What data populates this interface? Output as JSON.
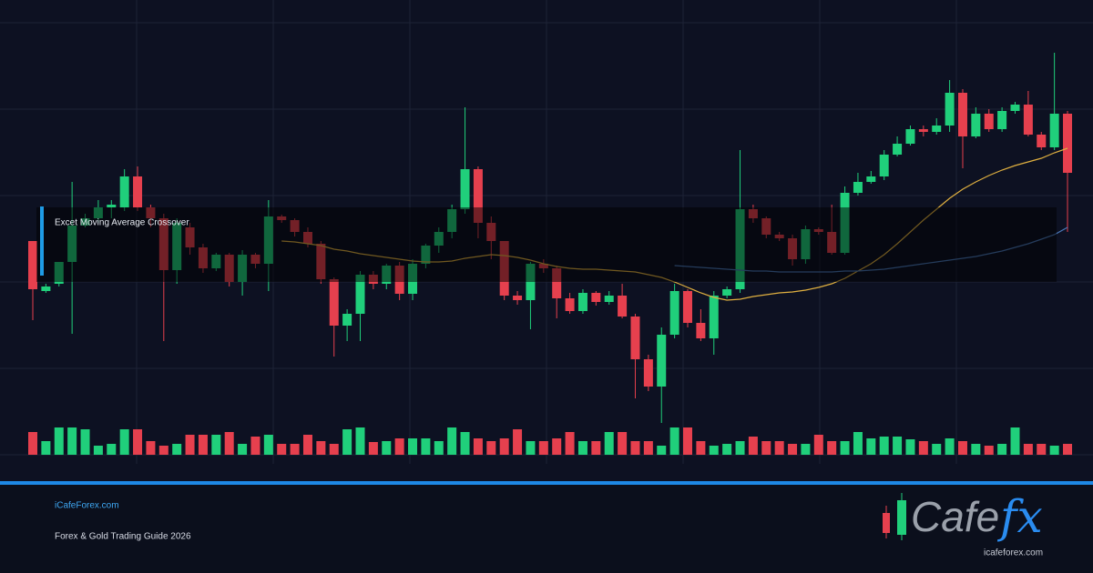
{
  "chart_data": {
    "type": "candlestick",
    "overlay_label": "Excet Moving Average Crossover",
    "ylim": [
      0,
      500
    ],
    "up_color": "#20cf7b",
    "down_color": "#e6404e",
    "open": [
      235,
      180,
      188,
      212,
      252,
      260,
      272,
      272,
      306,
      272,
      260,
      203,
      250,
      228,
      205,
      220,
      190,
      220,
      210,
      262,
      258,
      245,
      232,
      193,
      142,
      155,
      198,
      188,
      208,
      177,
      210,
      230,
      245,
      270,
      314,
      255,
      235,
      175,
      170,
      210,
      205,
      172,
      158,
      178,
      168,
      175,
      152,
      105,
      75,
      132,
      180,
      145,
      128,
      175,
      182,
      270,
      260,
      242,
      238,
      215,
      248,
      245,
      222,
      288,
      300,
      306,
      330,
      342,
      358,
      355,
      362,
      398,
      350,
      375,
      358,
      378,
      385,
      352,
      338,
      375
    ],
    "high": [
      235,
      188,
      212,
      300,
      265,
      280,
      280,
      314,
      317,
      275,
      265,
      260,
      255,
      232,
      222,
      222,
      225,
      222,
      280,
      264,
      260,
      250,
      235,
      195,
      160,
      202,
      202,
      210,
      212,
      215,
      232,
      250,
      275,
      382,
      317,
      262,
      235,
      180,
      212,
      215,
      208,
      178,
      182,
      180,
      180,
      188,
      155,
      110,
      140,
      188,
      182,
      160,
      180,
      185,
      335,
      275,
      262,
      245,
      242,
      252,
      250,
      275,
      295,
      310,
      312,
      335,
      350,
      362,
      362,
      370,
      412,
      402,
      382,
      380,
      382,
      388,
      400,
      355,
      442,
      378
    ],
    "low": [
      148,
      178,
      185,
      133,
      250,
      255,
      260,
      268,
      268,
      250,
      125,
      188,
      220,
      200,
      202,
      185,
      175,
      205,
      180,
      255,
      240,
      228,
      188,
      108,
      125,
      125,
      182,
      182,
      170,
      170,
      205,
      222,
      238,
      265,
      238,
      215,
      170,
      165,
      138,
      200,
      150,
      155,
      155,
      164,
      165,
      150,
      62,
      70,
      35,
      128,
      140,
      125,
      110,
      172,
      178,
      255,
      238,
      235,
      208,
      210,
      242,
      220,
      220,
      285,
      298,
      302,
      328,
      340,
      350,
      352,
      355,
      315,
      348,
      355,
      355,
      375,
      350,
      335,
      335,
      245
    ],
    "close": [
      182,
      185,
      212,
      252,
      260,
      272,
      275,
      306,
      272,
      260,
      203,
      255,
      228,
      205,
      220,
      190,
      220,
      210,
      262,
      258,
      245,
      232,
      193,
      142,
      155,
      198,
      188,
      208,
      177,
      210,
      230,
      245,
      270,
      314,
      255,
      235,
      175,
      170,
      210,
      205,
      172,
      158,
      178,
      168,
      175,
      152,
      105,
      75,
      132,
      180,
      145,
      128,
      175,
      182,
      270,
      260,
      242,
      238,
      215,
      248,
      245,
      222,
      288,
      300,
      306,
      330,
      342,
      358,
      355,
      362,
      398,
      350,
      375,
      358,
      378,
      385,
      352,
      338,
      375,
      310
    ],
    "volume": [
      25,
      15,
      30,
      30,
      28,
      10,
      12,
      28,
      28,
      15,
      10,
      12,
      22,
      22,
      22,
      25,
      12,
      20,
      22,
      12,
      12,
      22,
      15,
      12,
      28,
      30,
      14,
      15,
      18,
      18,
      18,
      15,
      30,
      25,
      18,
      15,
      18,
      28,
      15,
      15,
      18,
      25,
      15,
      15,
      25,
      25,
      15,
      15,
      10,
      30,
      30,
      15,
      10,
      12,
      15,
      20,
      15,
      15,
      12,
      12,
      22,
      15,
      15,
      25,
      18,
      20,
      20,
      17,
      15,
      12,
      18,
      15,
      12,
      10,
      12,
      30,
      12,
      12,
      10,
      12
    ],
    "moving_averages": [
      {
        "color": "#e0b040",
        "values": [
          null,
          null,
          null,
          null,
          null,
          null,
          null,
          null,
          null,
          null,
          null,
          null,
          null,
          null,
          null,
          null,
          null,
          null,
          null,
          235,
          234,
          232,
          230,
          226,
          224,
          221,
          219,
          217,
          215,
          213,
          212,
          212,
          213,
          216,
          218,
          220,
          219,
          217,
          214,
          210,
          207,
          205,
          204,
          204,
          203,
          202,
          201,
          198,
          195,
          190,
          184,
          178,
          173,
          170,
          171,
          174,
          176,
          178,
          179,
          181,
          184,
          188,
          194,
          202,
          210,
          220,
          232,
          245,
          258,
          270,
          282,
          292,
          300,
          307,
          313,
          318,
          322,
          326,
          332,
          337
        ]
      },
      {
        "color": "#4a78b8",
        "values": [
          null,
          null,
          null,
          null,
          null,
          null,
          null,
          null,
          null,
          null,
          null,
          null,
          null,
          null,
          null,
          null,
          null,
          null,
          null,
          null,
          null,
          null,
          null,
          null,
          null,
          null,
          null,
          null,
          null,
          null,
          null,
          null,
          null,
          null,
          null,
          null,
          null,
          null,
          null,
          null,
          null,
          null,
          null,
          null,
          null,
          null,
          null,
          null,
          null,
          208,
          207,
          206,
          205,
          204,
          203,
          202,
          202,
          201,
          201,
          201,
          201,
          201,
          202,
          202,
          203,
          204,
          206,
          208,
          210,
          212,
          214,
          216,
          218,
          221,
          224,
          228,
          232,
          237,
          242,
          250
        ]
      }
    ]
  },
  "footer": {
    "site": "iCafeForex.com",
    "subtitle": "Forex & Gold Trading Guide 2026"
  },
  "logo": {
    "word": "Cafe",
    "accent": "fx",
    "url": "icafeforex.com"
  }
}
